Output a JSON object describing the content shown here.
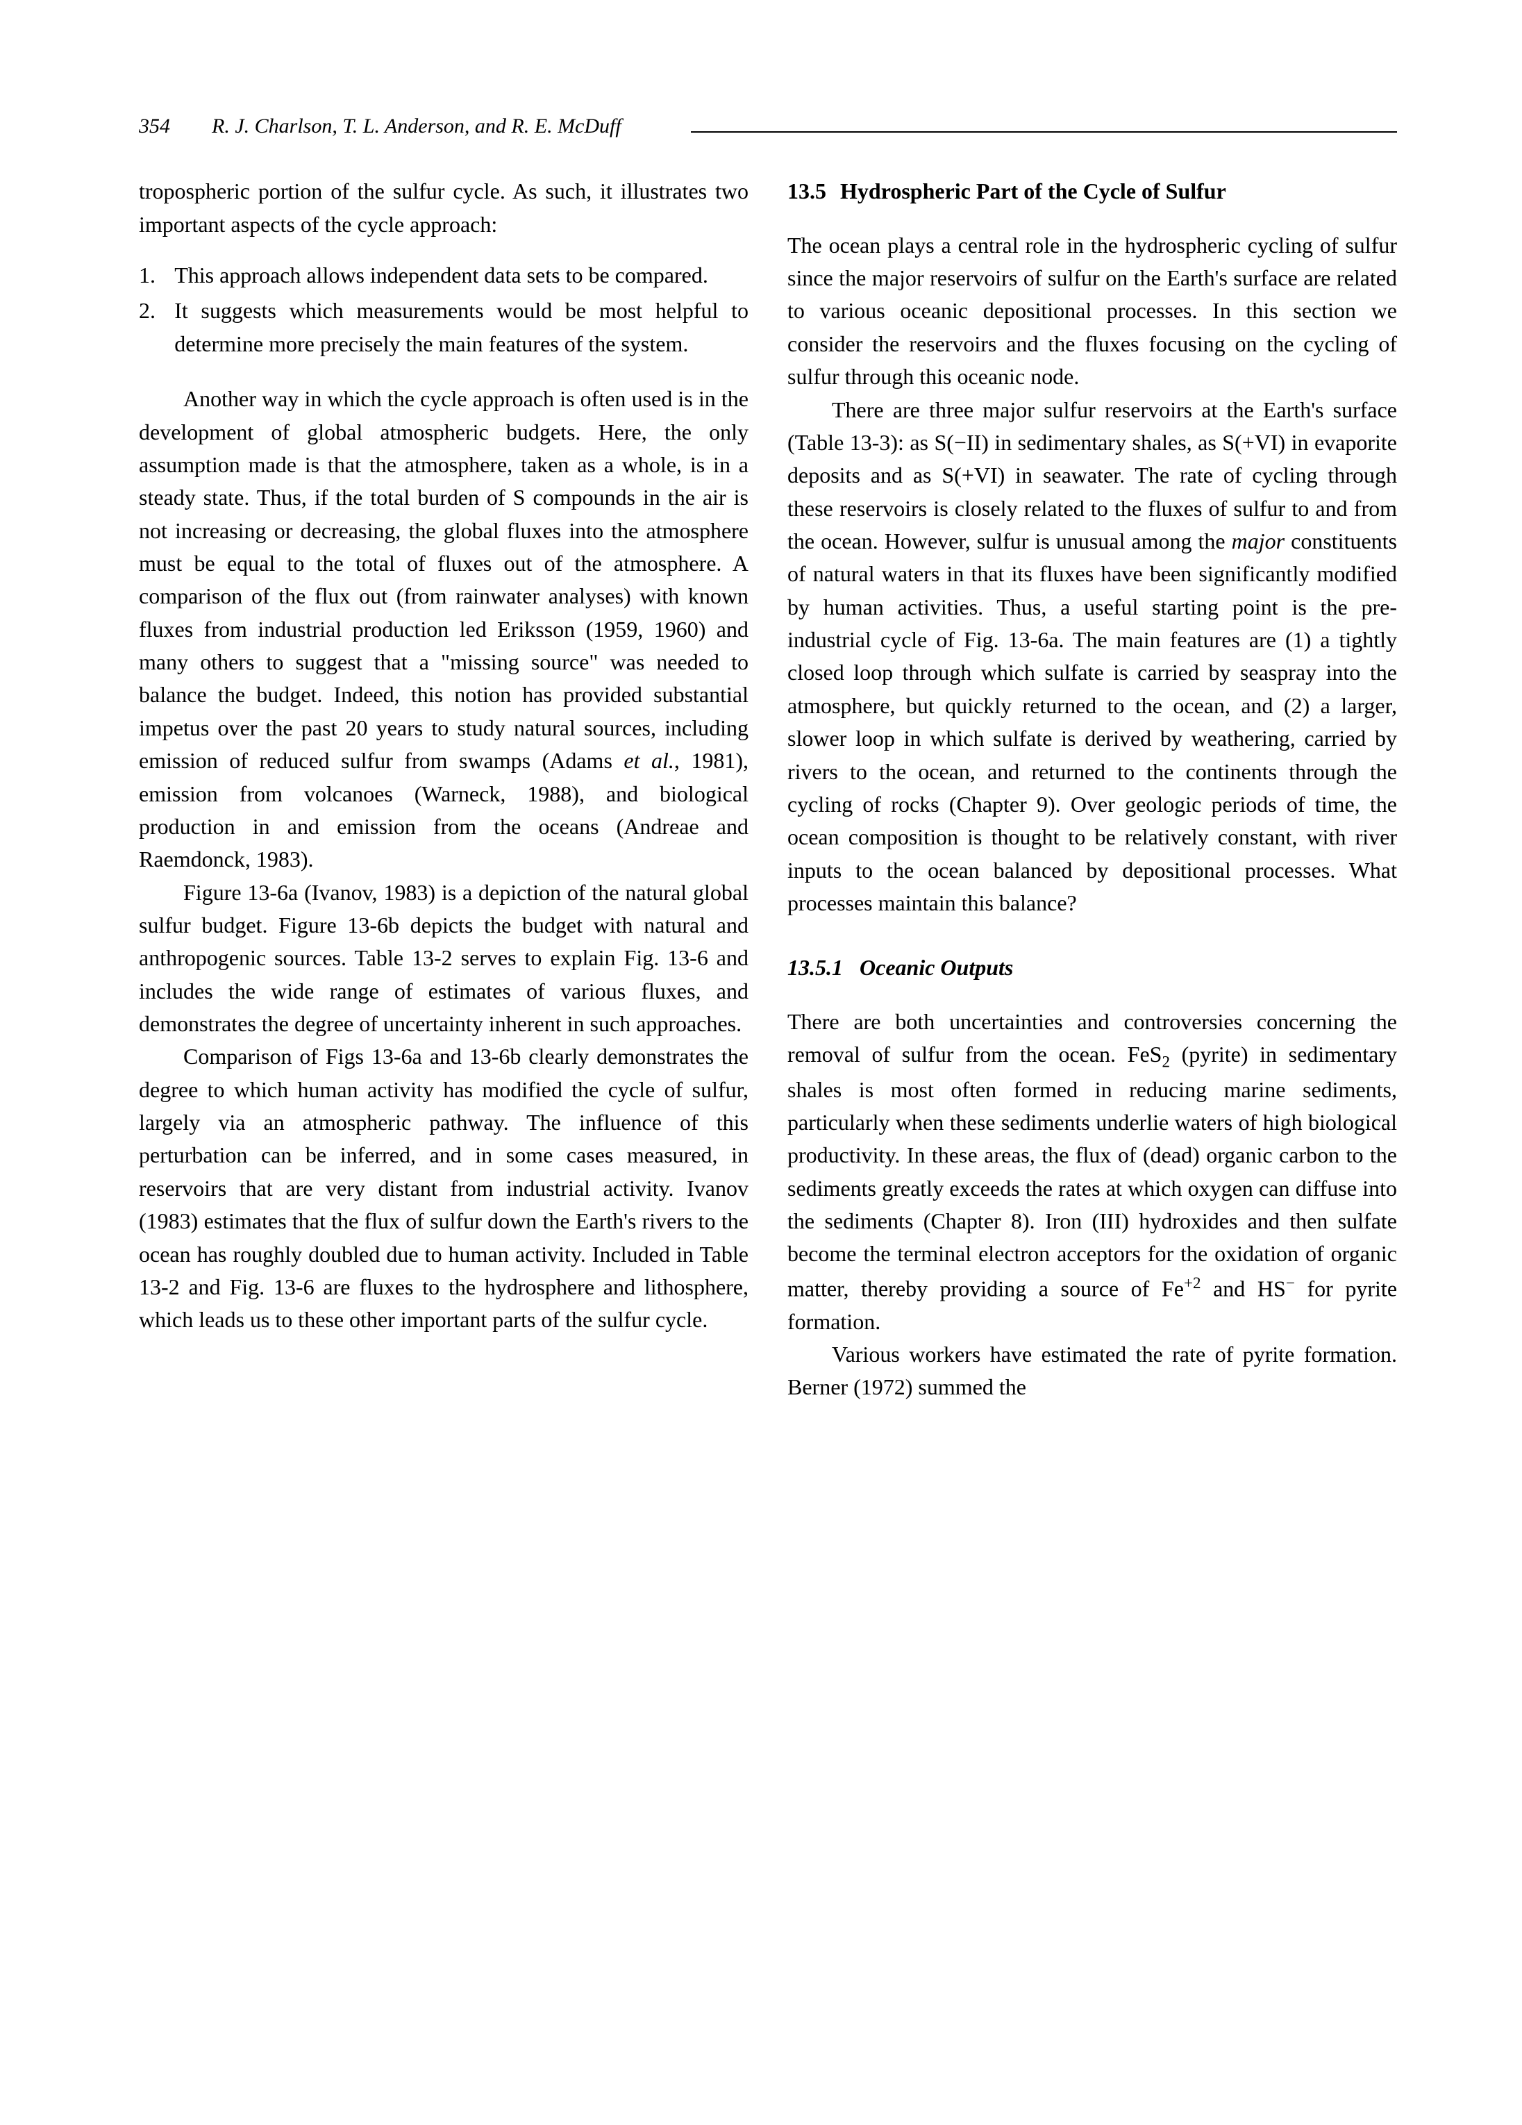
{
  "header": {
    "page_number": "354",
    "authors": "R. J. Charlson, T. L. Anderson, and R. E. McDuff"
  },
  "left_column": {
    "p1": "tropospheric portion of the sulfur cycle. As such, it illustrates two important aspects of the cycle approach:",
    "list": {
      "item1": {
        "num": "1.",
        "text": "This approach allows independent data sets to be compared."
      },
      "item2": {
        "num": "2.",
        "text": "It suggests which measurements would be most helpful to determine more precisely the main features of the system."
      }
    },
    "p2": "Another way in which the cycle approach is often used is in the development of global atmospheric budgets. Here, the only assumption made is that the atmosphere, taken as a whole, is in a steady state. Thus, if the total burden of S compounds in the air is not increasing or decreasing, the global fluxes into the atmosphere must be equal to the total of fluxes out of the atmosphere. A comparison of the flux out (from rainwater analyses) with known fluxes from industrial production led Eriksson (1959, 1960) and many others to suggest that a \"missing source\" was needed to balance the budget. Indeed, this notion has provided substantial impetus over the past 20 years to study natural sources, including emission of reduced sulfur from swamps (Adams ",
    "p2_ital": "et al.",
    "p2_b": ", 1981), emission from volcanoes (Warneck, 1988), and biological production in and emission from the oceans (Andreae and Raemdonck, 1983).",
    "p3": "Figure 13-6a (Ivanov, 1983) is a depiction of the natural global sulfur budget. Figure 13-6b depicts the budget with natural and anthropogenic sources. Table 13-2 serves to explain Fig. 13-6 and includes the wide range of estimates of various fluxes, and demonstrates the degree of uncertainty inherent in such approaches.",
    "p4": "Comparison of Figs 13-6a and 13-6b clearly demonstrates the degree to which human activity has modified the cycle of sulfur, largely via an atmospheric pathway. The influence of this perturbation can be inferred, and in some cases measured, in reservoirs that are very distant from industrial activity. Ivanov (1983) estimates that the flux of sulfur down the Earth's rivers to the ocean has roughly doubled due to human activity. Included in Table 13-2 and Fig. 13-6 are fluxes to the hydrosphere and lithosphere, which leads us to these other important parts of the sulfur cycle."
  },
  "right_column": {
    "heading": {
      "num": "13.5",
      "title": "Hydrospheric Part of the Cycle of Sulfur"
    },
    "p1": "The ocean plays a central role in the hydrospheric cycling of sulfur since the major reservoirs of sulfur on the Earth's surface are related to various oceanic depositional processes. In this section we consider the reservoirs and the fluxes focusing on the cycling of sulfur through this oceanic node.",
    "p2a": "There are three major sulfur reservoirs at the Earth's surface (Table 13-3): as S(−II) in sedimentary shales, as S(+VI) in evaporite deposits and as S(+VI) in seawater. The rate of cycling through these reservoirs is closely related to the fluxes of sulfur to and from the ocean. However, sulfur is unusual among the ",
    "p2_major": "major",
    "p2b": " constituents of natural waters in that its fluxes have been significantly modified by human activities. Thus, a useful starting point is the pre-industrial cycle of Fig. 13-6a. The main features are (1) a tightly closed loop through which sulfate is carried by seaspray into the atmosphere, but quickly returned to the ocean, and (2) a larger, slower loop in which sulfate is derived by weathering, carried by rivers to the ocean, and returned to the continents through the cycling of rocks (Chapter 9). Over geologic periods of time, the ocean composition is thought to be relatively constant, with river inputs to the ocean balanced by depositional processes. What processes maintain this balance?",
    "subheading": {
      "num": "13.5.1",
      "title": "Oceanic Outputs"
    },
    "p3a": "There are both uncertainties and controversies concerning the removal of sulfur from the ocean. FeS",
    "p3_sub": "2",
    "p3b": " (pyrite) in sedimentary shales is most often formed in reducing marine sediments, particularly when these sediments underlie waters of high biological productivity. In these areas, the flux of (dead) organic carbon to the sediments greatly exceeds the rates at which oxygen can diffuse into the sediments (Chapter 8). Iron (III) hydroxides and then sulfate become the terminal electron acceptors for the oxidation of organic matter, thereby providing a source of Fe",
    "p3_sup": "+2",
    "p3c": " and HS",
    "p3_sup2": "−",
    "p3d": " for pyrite formation.",
    "p4": "Various workers have estimated the rate of pyrite formation. Berner (1972) summed the"
  }
}
